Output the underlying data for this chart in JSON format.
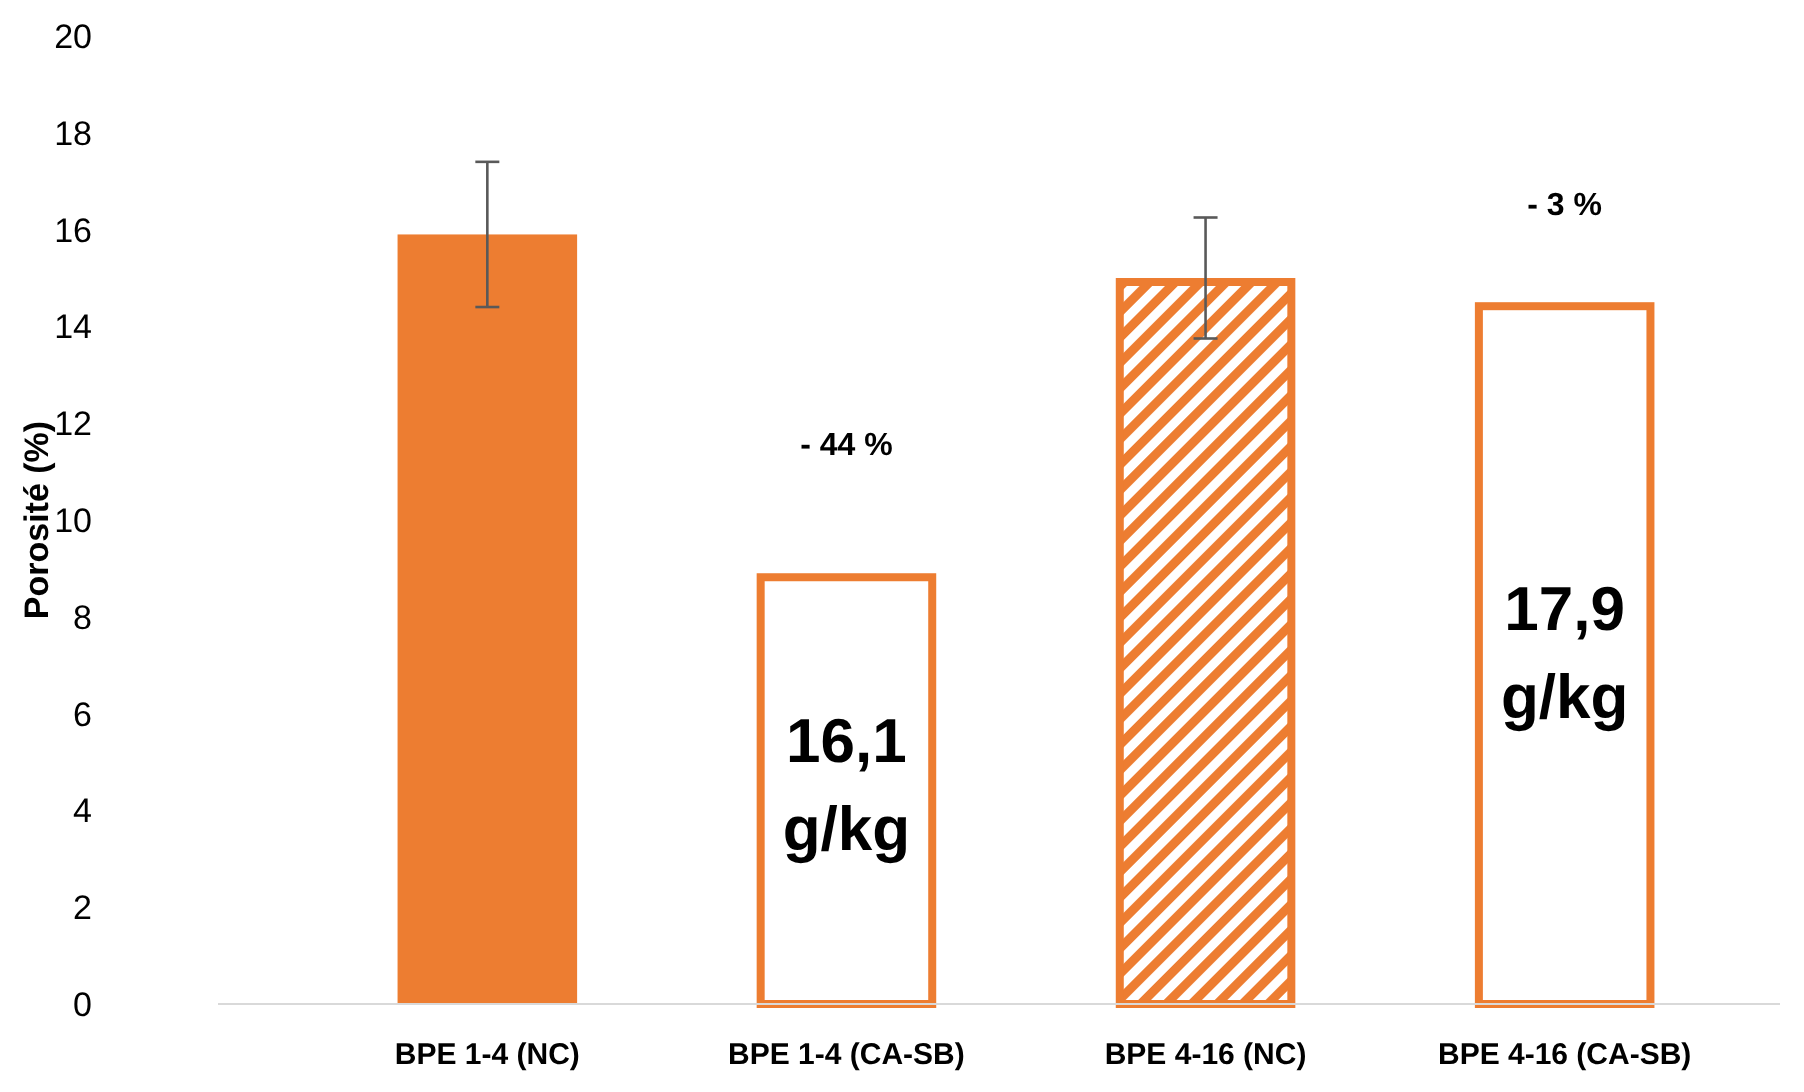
{
  "chart_data": {
    "type": "bar",
    "ylabel": "Porosité (%)",
    "categories": [
      "BPE 1-4 (NC)",
      "BPE 1-4 (CA-SB)",
      "BPE 4-16 (NC)",
      "BPE 4-16 (CA-SB)"
    ],
    "values": [
      15.9,
      8.9,
      15.0,
      14.5
    ],
    "errors": [
      1.5,
      null,
      1.25,
      null
    ],
    "color": "#ed7d31",
    "ylim": [
      0,
      20
    ],
    "yticks": [
      0,
      2,
      4,
      6,
      8,
      10,
      12,
      14,
      16,
      18,
      20
    ],
    "grid": false,
    "annotations": [
      "- 44 %",
      "- 3 %",
      "16,1\ng/kg",
      "17,9\ng/kg"
    ]
  }
}
